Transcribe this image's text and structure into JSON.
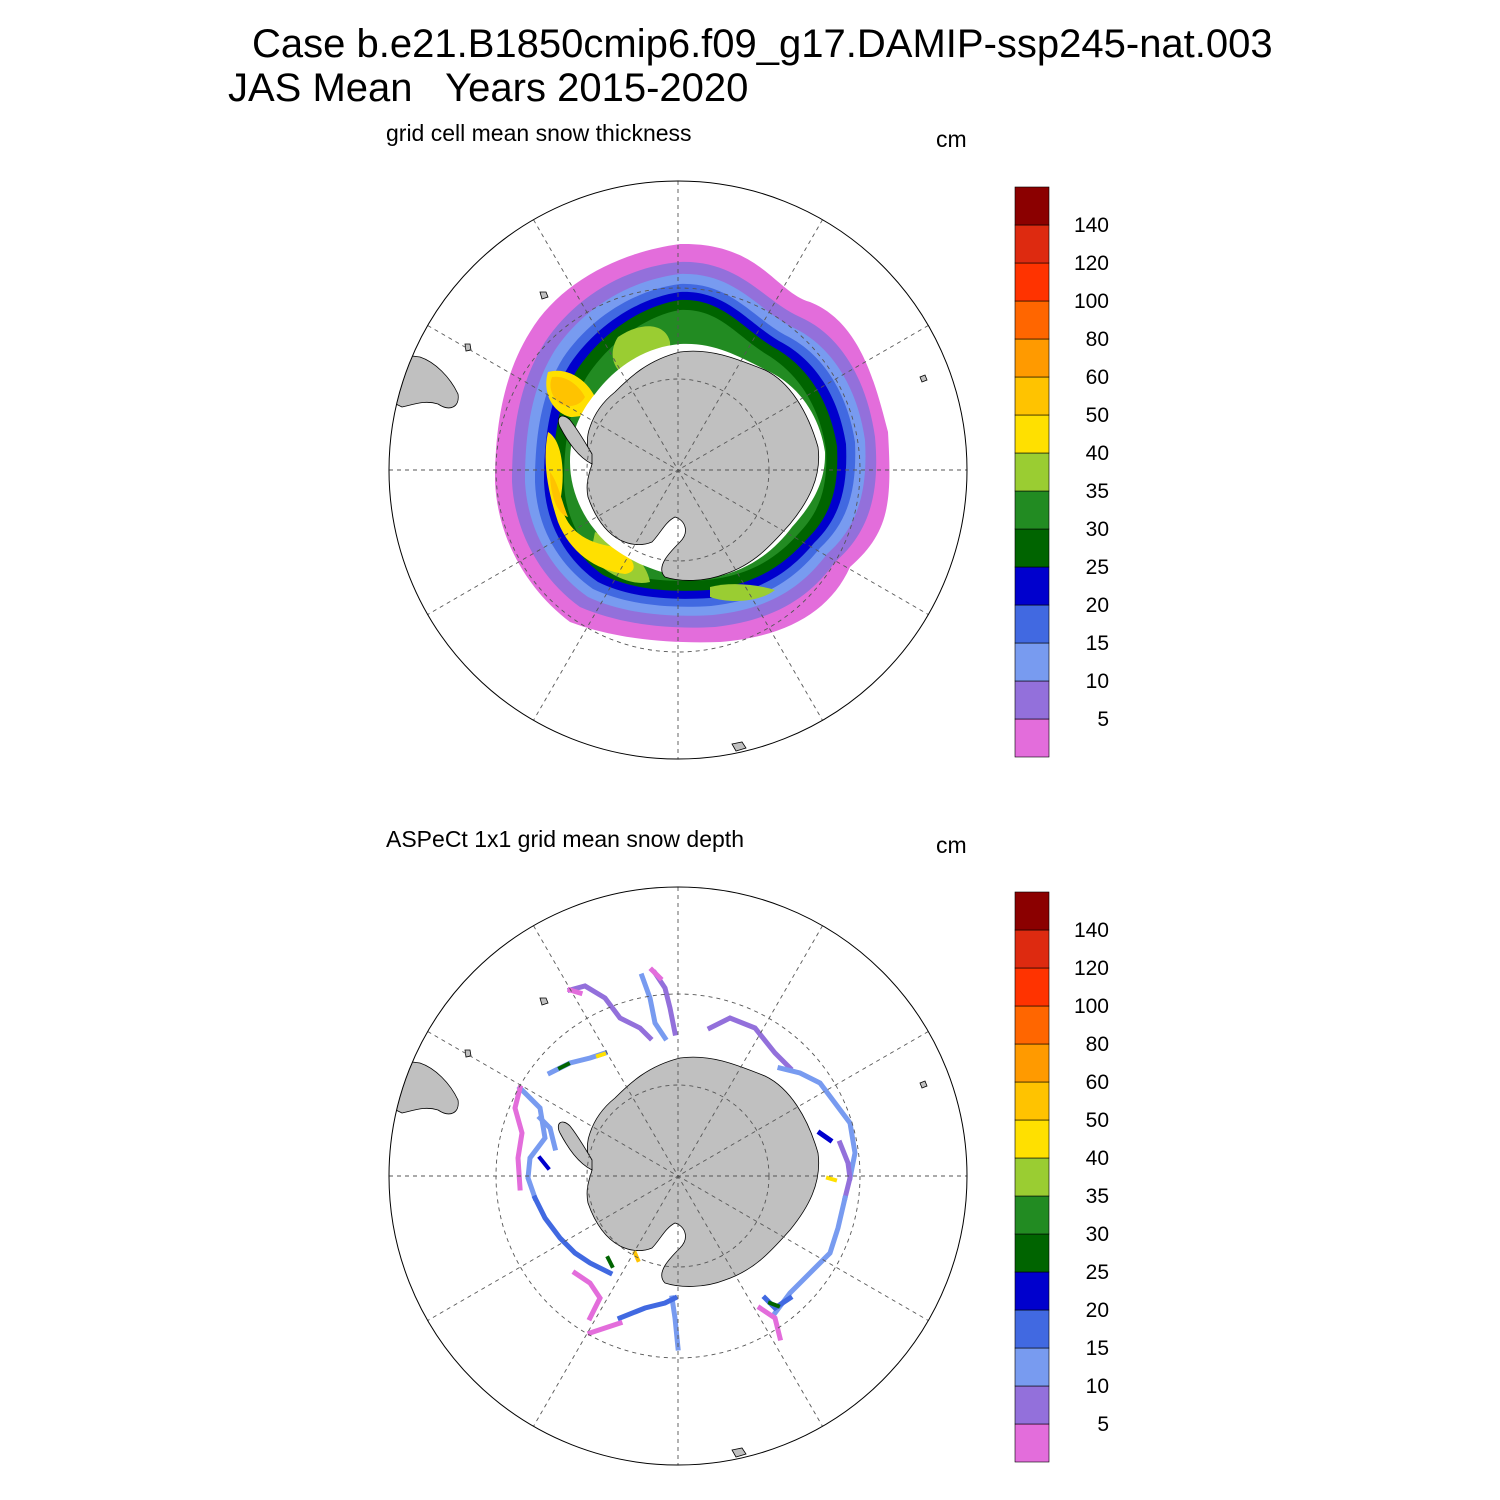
{
  "figure": {
    "title_line1": "Case b.e21.B1850cmip6.f09_g17.DAMIP-ssp245-nat.003",
    "title_line2": "JAS Mean   Years 2015-2020"
  },
  "panels": [
    {
      "title": "grid cell mean snow thickness",
      "units": "cm",
      "field": "modeled snow thickness ring around Antarctica"
    },
    {
      "title": "ASPeCt 1x1 grid mean snow depth",
      "units": "cm",
      "field": "ship-track observations"
    }
  ],
  "colorbar": {
    "labels": [
      "5",
      "10",
      "15",
      "20",
      "25",
      "30",
      "35",
      "40",
      "50",
      "60",
      "80",
      "100",
      "120",
      "140"
    ],
    "colors": [
      "#e36ddb",
      "#9370db",
      "#789bf0",
      "#4169e1",
      "#0000cd",
      "#006400",
      "#228b22",
      "#9acd32",
      "#ffe000",
      "#ffc300",
      "#ff9a00",
      "#ff6600",
      "#ff3300",
      "#dd2a10",
      "#8b0000"
    ]
  },
  "colors": {
    "land": "#c0c0c0",
    "grid": "#555555"
  }
}
